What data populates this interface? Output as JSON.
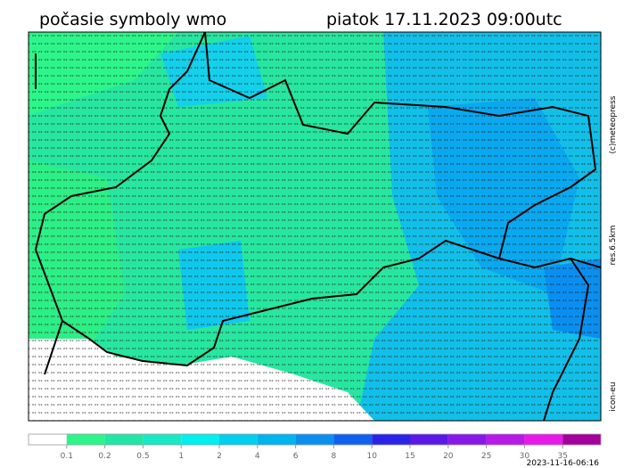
{
  "header": {
    "title": "počasie symboly wmo",
    "datetime": "piatok 17.11.2023 09:00utc"
  },
  "side_labels": {
    "copyright": "(c)meteopress",
    "resolution": "res.6.5km",
    "model": "icon-eu"
  },
  "legend": {
    "colors": [
      "#ffffff",
      "#2ef58a",
      "#22e6a6",
      "#19e8c6",
      "#00f0f0",
      "#00cfee",
      "#00b4f0",
      "#0a8ff0",
      "#1060f0",
      "#2a22e8",
      "#5a18e8",
      "#8818e8",
      "#b818e8",
      "#e818e8",
      "#a3009c"
    ],
    "labels": [
      0.1,
      0.2,
      0.5,
      1,
      2,
      4,
      6,
      8,
      10,
      15,
      20,
      25,
      30,
      35
    ]
  },
  "footer": {
    "run": "2023-11-16-06:16"
  }
}
